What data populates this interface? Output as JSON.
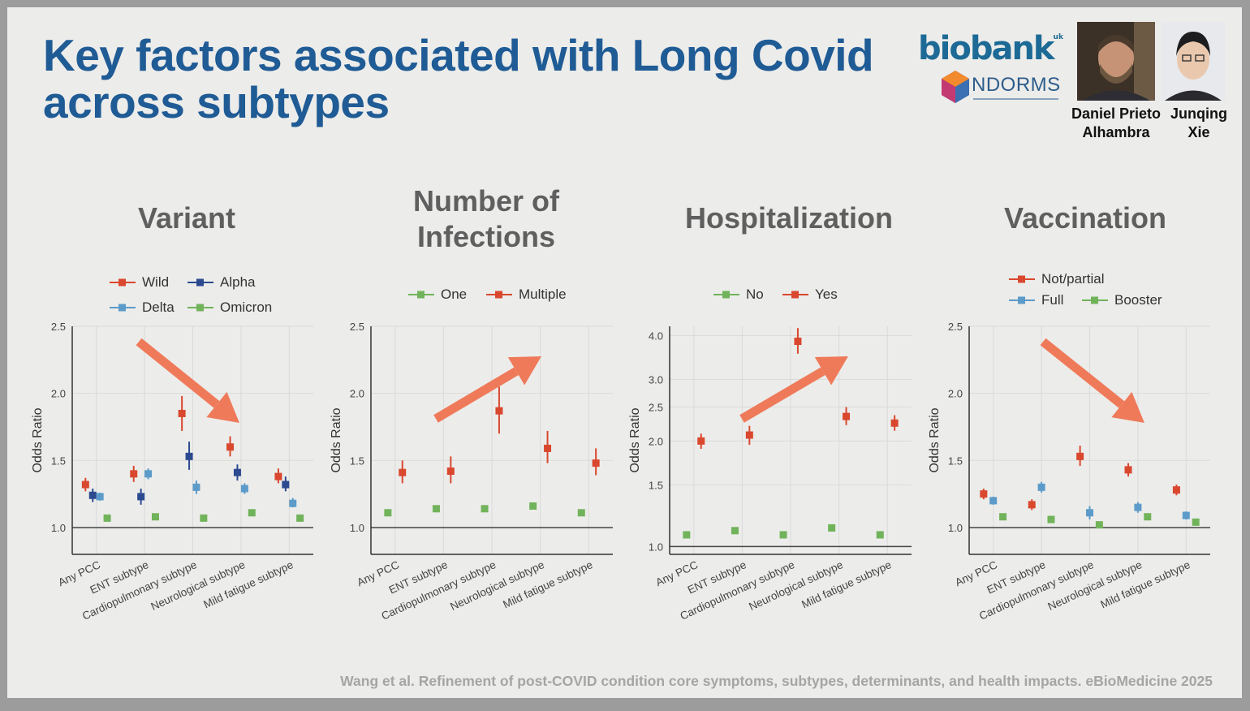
{
  "slide": {
    "title_line1": "Key factors associated with Long Covid",
    "title_line2": "across subtypes",
    "logo_biobank": "biobank",
    "logo_biobank_sup": "uk",
    "logo_ndorms": "NDORMS",
    "people": [
      {
        "name_line1": "Daniel Prieto",
        "name_line2": "Alhambra"
      },
      {
        "name_line1": "Junqing",
        "name_line2": "Xie"
      }
    ],
    "citation": "Wang et al. Refinement of post-COVID condition core symptoms, subtypes, determinants, and health impacts. eBioMedicine 2025",
    "colors": {
      "title": "#1f5b95",
      "arrow": "#ef7a5a",
      "red": "#d9482e",
      "navy": "#2c4a90",
      "light_blue": "#5c9bc9",
      "green": "#71b35a"
    }
  },
  "chart_data": [
    {
      "type": "scatter",
      "title": "Variant",
      "ylabel": "Odds Ratio",
      "ylim": [
        0.8,
        2.5
      ],
      "yticks": [
        "1.0",
        "1.5",
        "2.0",
        "2.5"
      ],
      "y_scale": "linear",
      "reference_line": 1.0,
      "categories": [
        "Any PCC",
        "ENT subtype",
        "Cardiopulmonary subtype",
        "Neurological subtype",
        "Mild fatigue subtype"
      ],
      "legend_rows": [
        [
          "Wild",
          "Alpha"
        ],
        [
          "Delta",
          "Omicron"
        ]
      ],
      "series": [
        {
          "name": "Wild",
          "color": "#d9482e",
          "values": [
            1.32,
            1.4,
            1.85,
            1.6,
            1.38
          ],
          "lower": [
            1.27,
            1.34,
            1.72,
            1.53,
            1.33
          ],
          "upper": [
            1.37,
            1.46,
            1.98,
            1.68,
            1.44
          ]
        },
        {
          "name": "Alpha",
          "color": "#2c4a90",
          "values": [
            1.24,
            1.23,
            1.53,
            1.41,
            1.32
          ],
          "lower": [
            1.19,
            1.17,
            1.43,
            1.35,
            1.27
          ],
          "upper": [
            1.29,
            1.29,
            1.64,
            1.47,
            1.38
          ]
        },
        {
          "name": "Delta",
          "color": "#5c9bc9",
          "values": [
            1.23,
            1.4,
            1.3,
            1.29,
            1.18
          ],
          "lower": [
            1.2,
            1.36,
            1.25,
            1.25,
            1.15
          ],
          "upper": [
            1.26,
            1.44,
            1.35,
            1.33,
            1.22
          ]
        },
        {
          "name": "Omicron",
          "color": "#71b35a",
          "values": [
            1.07,
            1.08,
            1.07,
            1.11,
            1.07
          ],
          "lower": [
            1.06,
            1.07,
            1.06,
            1.1,
            1.06
          ],
          "upper": [
            1.08,
            1.09,
            1.08,
            1.12,
            1.08
          ]
        }
      ],
      "annotation": "arrow pointing down-right"
    },
    {
      "type": "scatter",
      "title": "Number of Infections",
      "title_lines": [
        "Number of",
        "Infections"
      ],
      "ylabel": "Odds Ratio",
      "ylim": [
        0.8,
        2.5
      ],
      "yticks": [
        "1.0",
        "1.5",
        "2.0",
        "2.5"
      ],
      "y_scale": "linear",
      "reference_line": 1.0,
      "categories": [
        "Any PCC",
        "ENT subtype",
        "Cardiopulmonary subtype",
        "Neurological subtype",
        "Mild fatigue subtype"
      ],
      "legend_rows": [
        [
          "One",
          "Multiple"
        ]
      ],
      "series": [
        {
          "name": "One",
          "color": "#71b35a",
          "values": [
            1.11,
            1.14,
            1.14,
            1.16,
            1.11
          ],
          "lower": [
            1.1,
            1.13,
            1.13,
            1.15,
            1.1
          ],
          "upper": [
            1.12,
            1.15,
            1.15,
            1.17,
            1.12
          ]
        },
        {
          "name": "Multiple",
          "color": "#d9482e",
          "values": [
            1.41,
            1.42,
            1.87,
            1.59,
            1.48
          ],
          "lower": [
            1.33,
            1.33,
            1.7,
            1.48,
            1.39
          ],
          "upper": [
            1.5,
            1.53,
            2.05,
            1.72,
            1.59
          ]
        }
      ],
      "annotation": "arrow pointing up-right"
    },
    {
      "type": "scatter",
      "title": "Hospitalization",
      "ylabel": "Odds Ratio",
      "ylim": [
        0.95,
        4.25
      ],
      "yticks": [
        "1.0",
        "1.5",
        "2.0",
        "2.5",
        "3.0",
        "4.0"
      ],
      "y_scale": "log",
      "reference_line": 1.0,
      "categories": [
        "Any PCC",
        "ENT subtype",
        "Cardiopulmonary subtype",
        "Neurological subtype",
        "Mild fatigue subtype"
      ],
      "legend_rows": [
        [
          "No",
          "Yes"
        ]
      ],
      "series": [
        {
          "name": "No",
          "color": "#71b35a",
          "values": [
            1.08,
            1.11,
            1.08,
            1.13,
            1.08
          ],
          "lower": [
            1.07,
            1.1,
            1.07,
            1.12,
            1.07
          ],
          "upper": [
            1.09,
            1.12,
            1.09,
            1.14,
            1.09
          ]
        },
        {
          "name": "Yes",
          "color": "#d9482e",
          "values": [
            2.0,
            2.08,
            3.85,
            2.35,
            2.25
          ],
          "lower": [
            1.9,
            1.95,
            3.55,
            2.22,
            2.14
          ],
          "upper": [
            2.1,
            2.21,
            4.2,
            2.5,
            2.37
          ]
        }
      ],
      "annotation": "arrow pointing up-right"
    },
    {
      "type": "scatter",
      "title": "Vaccination",
      "ylabel": "Odds Ratio",
      "ylim": [
        0.8,
        2.5
      ],
      "yticks": [
        "1.0",
        "1.5",
        "2.0",
        "2.5"
      ],
      "y_scale": "linear",
      "reference_line": 1.0,
      "categories": [
        "Any PCC",
        "ENT subtype",
        "Cardiopulmonary subtype",
        "Neurological subtype",
        "Mild fatigue subtype"
      ],
      "legend_rows": [
        [
          "Not/partial"
        ],
        [
          "Full",
          "Booster"
        ]
      ],
      "series": [
        {
          "name": "Not/partial",
          "color": "#d9482e",
          "values": [
            1.25,
            1.17,
            1.53,
            1.43,
            1.28
          ],
          "lower": [
            1.21,
            1.13,
            1.46,
            1.38,
            1.24
          ],
          "upper": [
            1.29,
            1.21,
            1.61,
            1.48,
            1.32
          ]
        },
        {
          "name": "Full",
          "color": "#5c9bc9",
          "values": [
            1.2,
            1.3,
            1.11,
            1.15,
            1.09
          ],
          "lower": [
            1.17,
            1.26,
            1.06,
            1.11,
            1.06
          ],
          "upper": [
            1.23,
            1.34,
            1.16,
            1.19,
            1.12
          ]
        },
        {
          "name": "Booster",
          "color": "#71b35a",
          "values": [
            1.08,
            1.06,
            1.02,
            1.08,
            1.04
          ],
          "lower": [
            1.07,
            1.05,
            1.01,
            1.07,
            1.03
          ],
          "upper": [
            1.09,
            1.07,
            1.03,
            1.09,
            1.05
          ]
        }
      ],
      "annotation": "arrow pointing down-right"
    }
  ]
}
